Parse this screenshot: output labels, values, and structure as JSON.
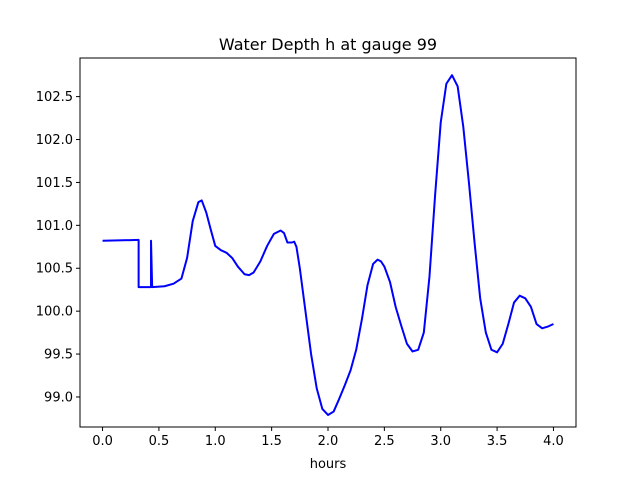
{
  "chart_data": {
    "type": "line",
    "title": "Water Depth h at gauge 99",
    "xlabel": "hours",
    "ylabel": "",
    "xlim": [
      -0.2,
      4.2
    ],
    "ylim": [
      98.65,
      102.95
    ],
    "grid": false,
    "xticks": [
      0.0,
      0.5,
      1.0,
      1.5,
      2.0,
      2.5,
      3.0,
      3.5,
      4.0
    ],
    "xtick_labels": [
      "0.0",
      "0.5",
      "1.0",
      "1.5",
      "2.0",
      "2.5",
      "3.0",
      "3.5",
      "4.0"
    ],
    "yticks": [
      99.0,
      99.5,
      100.0,
      100.5,
      101.0,
      101.5,
      102.0,
      102.5
    ],
    "ytick_labels": [
      "99.0",
      "99.5",
      "100.0",
      "100.5",
      "101.0",
      "101.5",
      "102.0",
      "102.5"
    ],
    "series": [
      {
        "color": "#0000ff",
        "x": [
          0.0,
          0.32,
          0.32,
          0.43,
          0.43,
          0.43,
          0.43,
          0.44,
          0.55,
          0.63,
          0.7,
          0.75,
          0.8,
          0.85,
          0.88,
          0.92,
          0.96,
          1.0,
          1.05,
          1.1,
          1.15,
          1.2,
          1.26,
          1.3,
          1.34,
          1.4,
          1.46,
          1.52,
          1.58,
          1.61,
          1.64,
          1.68,
          1.7,
          1.72,
          1.75,
          1.8,
          1.85,
          1.9,
          1.95,
          2.0,
          2.05,
          2.1,
          2.15,
          2.2,
          2.25,
          2.3,
          2.35,
          2.4,
          2.44,
          2.47,
          2.5,
          2.55,
          2.6,
          2.65,
          2.7,
          2.75,
          2.8,
          2.85,
          2.9,
          2.95,
          3.0,
          3.05,
          3.1,
          3.15,
          3.2,
          3.25,
          3.3,
          3.35,
          3.4,
          3.45,
          3.5,
          3.55,
          3.6,
          3.65,
          3.7,
          3.75,
          3.8,
          3.85,
          3.9,
          3.95,
          4.0
        ],
        "y": [
          100.82,
          100.83,
          100.28,
          100.28,
          100.82,
          100.28,
          100.82,
          100.28,
          100.29,
          100.32,
          100.38,
          100.62,
          101.05,
          101.27,
          101.29,
          101.15,
          100.95,
          100.76,
          100.71,
          100.68,
          100.62,
          100.52,
          100.43,
          100.42,
          100.45,
          100.58,
          100.76,
          100.9,
          100.94,
          100.91,
          100.8,
          100.8,
          100.81,
          100.75,
          100.5,
          100.0,
          99.5,
          99.1,
          98.86,
          98.79,
          98.83,
          98.98,
          99.14,
          99.31,
          99.55,
          99.9,
          100.3,
          100.55,
          100.6,
          100.58,
          100.52,
          100.34,
          100.05,
          99.83,
          99.62,
          99.53,
          99.55,
          99.75,
          100.4,
          101.35,
          102.2,
          102.65,
          102.75,
          102.62,
          102.15,
          101.5,
          100.8,
          100.15,
          99.75,
          99.55,
          99.52,
          99.62,
          99.85,
          100.1,
          100.18,
          100.15,
          100.05,
          99.85,
          99.8,
          99.82,
          99.85
        ]
      }
    ]
  }
}
